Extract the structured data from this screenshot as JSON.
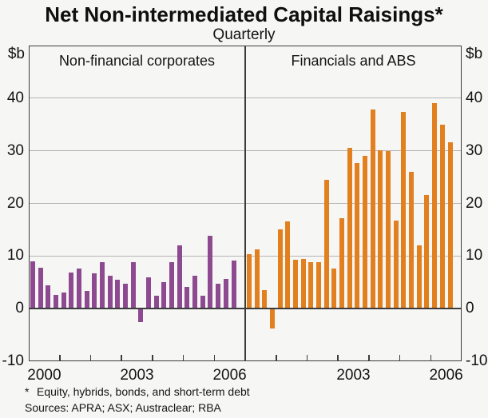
{
  "title": "Net Non-intermediated Capital Raisings*",
  "subtitle": "Quarterly",
  "y_unit": "$b",
  "footnote": {
    "marker": "*",
    "text": "Equity, hybrids, bonds, and short-term debt"
  },
  "sources": "Sources: APRA; ASX; Austraclear; RBA",
  "colors": {
    "background": "#f6f6f5",
    "bar_purple": "#8d4a90",
    "bar_orange": "#e2801f",
    "grid": "#b4b4b4",
    "axis": "#3c3c3c",
    "text": "#141414"
  },
  "chart_data": {
    "type": "bar",
    "frequency": "Quarterly",
    "title": "Net Non-intermediated Capital Raisings*",
    "ylabel": "$b",
    "ylim": [
      -10,
      50
    ],
    "yticks": [
      40,
      30,
      20,
      10,
      0,
      -10
    ],
    "gridlines": [
      40,
      30,
      20,
      10
    ],
    "grid": true,
    "years_per_panel": 7,
    "x": [
      "2000Q1",
      "2000Q2",
      "2000Q3",
      "2000Q4",
      "2001Q1",
      "2001Q2",
      "2001Q3",
      "2001Q4",
      "2002Q1",
      "2002Q2",
      "2002Q3",
      "2002Q4",
      "2003Q1",
      "2003Q2",
      "2003Q3",
      "2003Q4",
      "2004Q1",
      "2004Q2",
      "2004Q3",
      "2004Q4",
      "2005Q1",
      "2005Q2",
      "2005Q3",
      "2005Q4",
      "2006Q1",
      "2006Q2",
      "2006Q3"
    ],
    "panels": [
      {
        "label": "Non-financial corporates",
        "color": "#8d4a90",
        "values": [
          9.0,
          7.8,
          4.4,
          2.6,
          3.1,
          6.9,
          7.7,
          3.3,
          6.7,
          8.8,
          6.3,
          5.5,
          4.7,
          8.8,
          -2.5,
          6.0,
          2.5,
          5.0,
          8.8,
          12.0,
          4.1,
          6.2,
          2.5,
          13.8,
          4.7,
          5.6,
          9.2
        ],
        "x_tick_labels": [
          {
            "label": "2000",
            "year_index": 0
          },
          {
            "label": "2003",
            "year_index": 3
          },
          {
            "label": "2006",
            "year_index": 6
          }
        ]
      },
      {
        "label": "Financials and ABS",
        "color": "#e2801f",
        "values": [
          10.3,
          11.3,
          3.5,
          -3.7,
          15.0,
          16.6,
          9.3,
          9.4,
          8.8,
          8.9,
          24.5,
          7.7,
          17.2,
          30.5,
          27.7,
          29.1,
          37.8,
          30.1,
          29.9,
          16.7,
          37.4,
          26.0,
          12.1,
          21.6,
          39.0,
          35.0,
          31.6
        ],
        "x_tick_labels": [
          {
            "label": "2003",
            "year_index": 3
          },
          {
            "label": "2006",
            "year_index": 6
          }
        ]
      }
    ]
  }
}
